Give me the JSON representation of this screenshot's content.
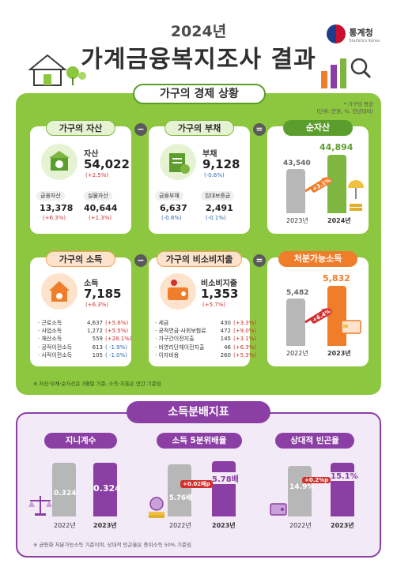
{
  "header": {
    "year": "2024년",
    "title": "가계금융복지조사 결과",
    "logo_text": "통계청",
    "logo_sub": "Statistics Korea"
  },
  "economy": {
    "banner": "가구의 경제 상황",
    "unit_note_1": "* 가구당 평균",
    "unit_note_2": "(단위: 만원, %, 전년대비)",
    "assets": {
      "tag": "가구의 자산",
      "label": "자산",
      "value": "54,022",
      "change": "(+2.5%)",
      "financial_label": "금융자산",
      "financial_value": "13,378",
      "financial_change": "(+6.3%)",
      "real_label": "실물자산",
      "real_value": "40,644",
      "real_change": "(+1.3%)"
    },
    "debt": {
      "tag": "가구의 부채",
      "label": "부채",
      "value": "9,128",
      "change": "(-0.6%)",
      "financial_label": "금융부채",
      "financial_value": "6,637",
      "financial_change": "(-0.8%)",
      "deposit_label": "임대보증금",
      "deposit_value": "2,491",
      "deposit_change": "(-0.1%)"
    },
    "net": {
      "tag": "순자산",
      "prev_value": "43,540",
      "curr_value": "44,894",
      "change": "+3.1%",
      "prev_year": "2023년",
      "curr_year": "2024년"
    },
    "income": {
      "tag": "가구의 소득",
      "label": "소득",
      "value": "7,185",
      "change": "(+6.3%)",
      "items": [
        {
          "name": "근로소득",
          "value": "4,637",
          "change": "(+5.6%)",
          "color": "red"
        },
        {
          "name": "사업소득",
          "value": "1,272",
          "change": "(+5.5%)",
          "color": "red"
        },
        {
          "name": "재산소득",
          "value": "559",
          "change": "(+28.1%)",
          "color": "red"
        },
        {
          "name": "공적이전소득",
          "value": "613",
          "change": "( -1.9%)",
          "color": "blue"
        },
        {
          "name": "사적이전소득",
          "value": "105",
          "change": "( -1.0%)",
          "color": "blue"
        }
      ]
    },
    "nonconsumption": {
      "tag": "가구의 비소비지출",
      "label": "비소비지출",
      "value": "1,353",
      "change": "(+5.7%)",
      "items": [
        {
          "name": "세금",
          "value": "430",
          "change": "(+3.3%)",
          "color": "red"
        },
        {
          "name": "공적연금·사회보험료",
          "value": "472",
          "change": "(+9.0%)",
          "color": "red"
        },
        {
          "name": "가구간이전지출",
          "value": "145",
          "change": "(+3.1%)",
          "color": "red"
        },
        {
          "name": "비영리단체이전지출",
          "value": "46",
          "change": "(+6.3%)",
          "color": "red"
        },
        {
          "name": "이자비용",
          "value": "260",
          "change": "(+5.3%)",
          "color": "red"
        }
      ]
    },
    "disposable": {
      "tag": "처분가능소득",
      "prev_value": "5,482",
      "curr_value": "5,832",
      "change": "+6.4%",
      "prev_year": "2022년",
      "curr_year": "2023년"
    },
    "footnote": "※ 자산·부채·순자산은 3월말 기준, 소득·지출은 연간 기준임"
  },
  "distribution": {
    "banner": "소득분배지표",
    "gini": {
      "tag": "지니계수",
      "prev": "0.324",
      "curr": "0.324",
      "prev_year": "2022년",
      "curr_year": "2023년"
    },
    "quintile": {
      "tag": "소득 5분위배율",
      "prev": "5.76배",
      "curr": "5.78배",
      "change": "+0.02배p",
      "prev_year": "2022년",
      "curr_year": "2023년"
    },
    "poverty": {
      "tag": "상대적 빈곤율",
      "prev": "14.9%",
      "curr": "15.1%",
      "change": "+0.2%p",
      "prev_year": "2022년",
      "curr_year": "2023년"
    },
    "footnote": "※ 균등화 처분가능소득 기준이며, 상대적 빈곤율은 중위소득 50% 기준임"
  },
  "colors": {
    "green": "#8dc63f",
    "orange": "#f07d29",
    "purple": "#8b3fa5",
    "red": "#d2302f",
    "blue": "#2d6ab0"
  }
}
